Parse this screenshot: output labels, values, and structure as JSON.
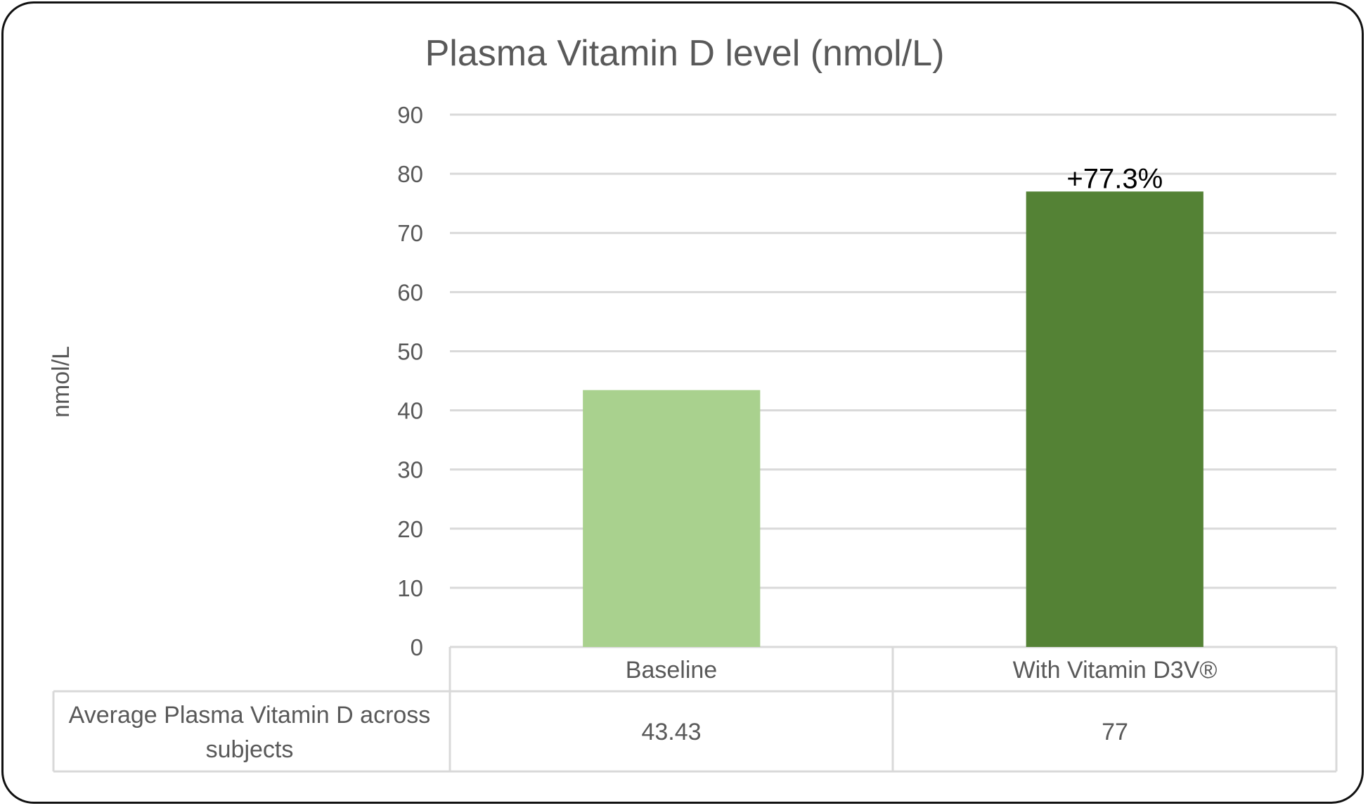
{
  "chart_data": {
    "type": "bar",
    "title": "Plasma Vitamin D level (nmol/L)",
    "ylabel": "nmol/L",
    "xlabel": "",
    "ylim": [
      0,
      90
    ],
    "yticks": [
      0,
      10,
      20,
      30,
      40,
      50,
      60,
      70,
      80,
      90
    ],
    "grid": true,
    "categories": [
      "Baseline",
      "With Vitamin D3V®"
    ],
    "series": [
      {
        "values": [
          43.43,
          77
        ],
        "colors": [
          "#a9d18e",
          "#548235"
        ]
      }
    ],
    "annotations": [
      {
        "category": "With Vitamin D3V®",
        "text": "+77.3%"
      }
    ],
    "data_table": {
      "row_label_lines": [
        "Average Plasma Vitamin D across",
        "subjects"
      ],
      "values": [
        "43.43",
        "77"
      ]
    }
  }
}
